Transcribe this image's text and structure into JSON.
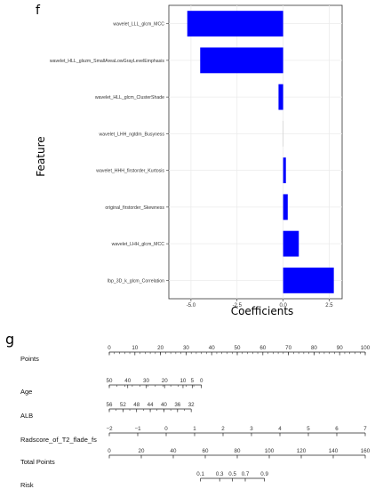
{
  "chart_data": [
    {
      "panel_label": "f",
      "type": "bar",
      "orientation": "horizontal",
      "categories": [
        "wavelet_LLL_glcm_MCC",
        "wavelet_HLL_glszm_SmallAreaLowGrayLevelEmphasis",
        "wavelet_HLL_glcm_ClusterShade",
        "wavelet_LHH_ngtdm_Busyness",
        "wavelet_HHH_firstorder_Kurtosis",
        "original_firstorder_Skewness",
        "wavelet_LHH_glcm_MCC",
        "lbp_3D_k_glcm_Correlation"
      ],
      "values": [
        -5.2,
        -4.5,
        -0.25,
        -0.01,
        0.15,
        0.25,
        0.85,
        2.75
      ],
      "xlabel": "Coefficients",
      "ylabel": "Feature",
      "xlim": [
        -6.2,
        3.2
      ],
      "xticks": [
        "-5.0",
        "-2.5",
        "0.0",
        "2.5"
      ],
      "xtick_values": [
        -5.0,
        -2.5,
        0.0,
        2.5
      ],
      "bar_color": "#0000ff",
      "grid": true
    },
    {
      "panel_label": "g",
      "type": "nomogram",
      "rows": [
        {
          "name": "Points",
          "ticks": [
            "0",
            "10",
            "20",
            "30",
            "40",
            "50",
            "60",
            "70",
            "80",
            "90",
            "100"
          ],
          "values": [
            0,
            10,
            20,
            30,
            40,
            50,
            60,
            70,
            80,
            90,
            100
          ],
          "domain": [
            0,
            100
          ]
        },
        {
          "name": "Age",
          "ticks": [
            "50",
            "40",
            "30",
            "20",
            "10",
            "5",
            "0"
          ],
          "values": [
            50,
            40,
            30,
            20,
            10,
            5,
            0
          ],
          "domain": [
            50,
            0
          ],
          "points_range": [
            0,
            36
          ]
        },
        {
          "name": "ALB",
          "ticks": [
            "56",
            "52",
            "48",
            "44",
            "40",
            "36",
            "32"
          ],
          "values": [
            56,
            52,
            48,
            44,
            40,
            36,
            32
          ],
          "domain": [
            56,
            32
          ],
          "points_range": [
            0,
            32
          ]
        },
        {
          "name": "Radscore_of_T2_flade_fs",
          "ticks": [
            "−2",
            "−1",
            "0",
            "1",
            "2",
            "3",
            "4",
            "5",
            "6",
            "7"
          ],
          "values": [
            -2,
            -1,
            0,
            1,
            2,
            3,
            4,
            5,
            6,
            7
          ],
          "domain": [
            -2,
            7
          ],
          "points_range": [
            0,
            100
          ]
        },
        {
          "name": "Total Points",
          "ticks": [
            "0",
            "20",
            "40",
            "60",
            "80",
            "100",
            "120",
            "140",
            "160"
          ],
          "values": [
            0,
            20,
            40,
            60,
            80,
            100,
            120,
            140,
            160
          ],
          "domain": [
            0,
            160
          ]
        },
        {
          "name": "Risk",
          "ticks": [
            "0.1",
            "0.3",
            "0.5",
            "0.7",
            "0.9"
          ],
          "values": [
            0.1,
            0.3,
            0.5,
            0.7,
            0.9
          ],
          "total_points": [
            57,
            69,
            77,
            85,
            97
          ]
        }
      ]
    }
  ]
}
